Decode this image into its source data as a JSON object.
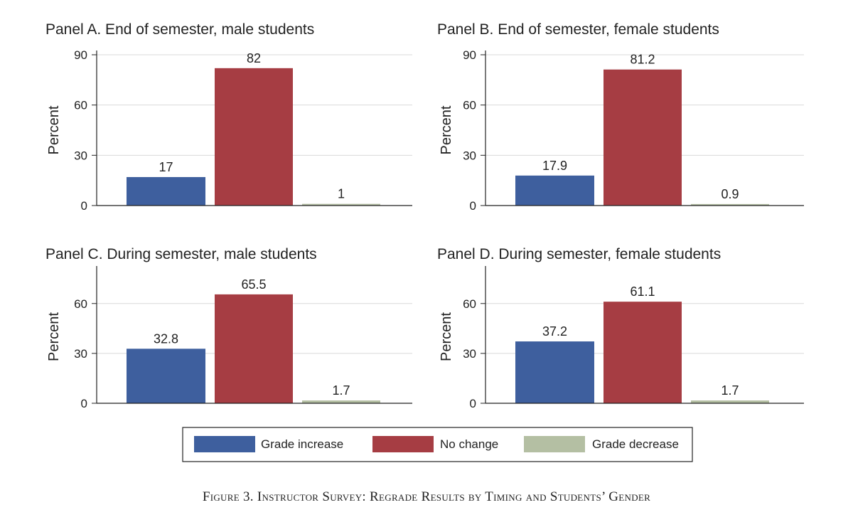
{
  "chart_data": [
    {
      "type": "bar",
      "title": "Panel A. End of semester, male students",
      "ylabel": "Percent",
      "categories": [
        "Grade increase",
        "No change",
        "Grade decrease"
      ],
      "values": [
        17,
        82,
        1
      ],
      "value_labels": [
        "17",
        "82",
        "1"
      ],
      "yticks": [
        0,
        30,
        60,
        90
      ],
      "ylim": [
        0,
        90
      ],
      "grid": true
    },
    {
      "type": "bar",
      "title": "Panel B. End of semester, female students",
      "ylabel": "Percent",
      "categories": [
        "Grade increase",
        "No change",
        "Grade decrease"
      ],
      "values": [
        17.9,
        81.2,
        0.9
      ],
      "value_labels": [
        "17.9",
        "81.2",
        "0.9"
      ],
      "yticks": [
        0,
        30,
        60,
        90
      ],
      "ylim": [
        0,
        90
      ],
      "grid": true
    },
    {
      "type": "bar",
      "title": "Panel C. During semester, male students",
      "ylabel": "Percent",
      "categories": [
        "Grade increase",
        "No change",
        "Grade decrease"
      ],
      "values": [
        32.8,
        65.5,
        1.7
      ],
      "value_labels": [
        "32.8",
        "65.5",
        "1.7"
      ],
      "yticks": [
        0,
        30,
        60
      ],
      "ylim": [
        0,
        80
      ],
      "grid": true
    },
    {
      "type": "bar",
      "title": "Panel D. During semester, female students",
      "ylabel": "Percent",
      "categories": [
        "Grade increase",
        "No change",
        "Grade decrease"
      ],
      "values": [
        37.2,
        61.1,
        1.7
      ],
      "value_labels": [
        "37.2",
        "61.1",
        "1.7"
      ],
      "yticks": [
        0,
        30,
        60
      ],
      "ylim": [
        0,
        80
      ],
      "grid": true
    }
  ],
  "legend": {
    "placement": "bottom-center",
    "items": [
      {
        "label": "Grade increase",
        "color": "#3e5f9e"
      },
      {
        "label": "No change",
        "color": "#a63d43"
      },
      {
        "label": "Grade decrease",
        "color": "#b4bfa3"
      }
    ]
  },
  "caption": "Figure 3. Instructor Survey: Regrade Results by Timing and Students’ Gender"
}
